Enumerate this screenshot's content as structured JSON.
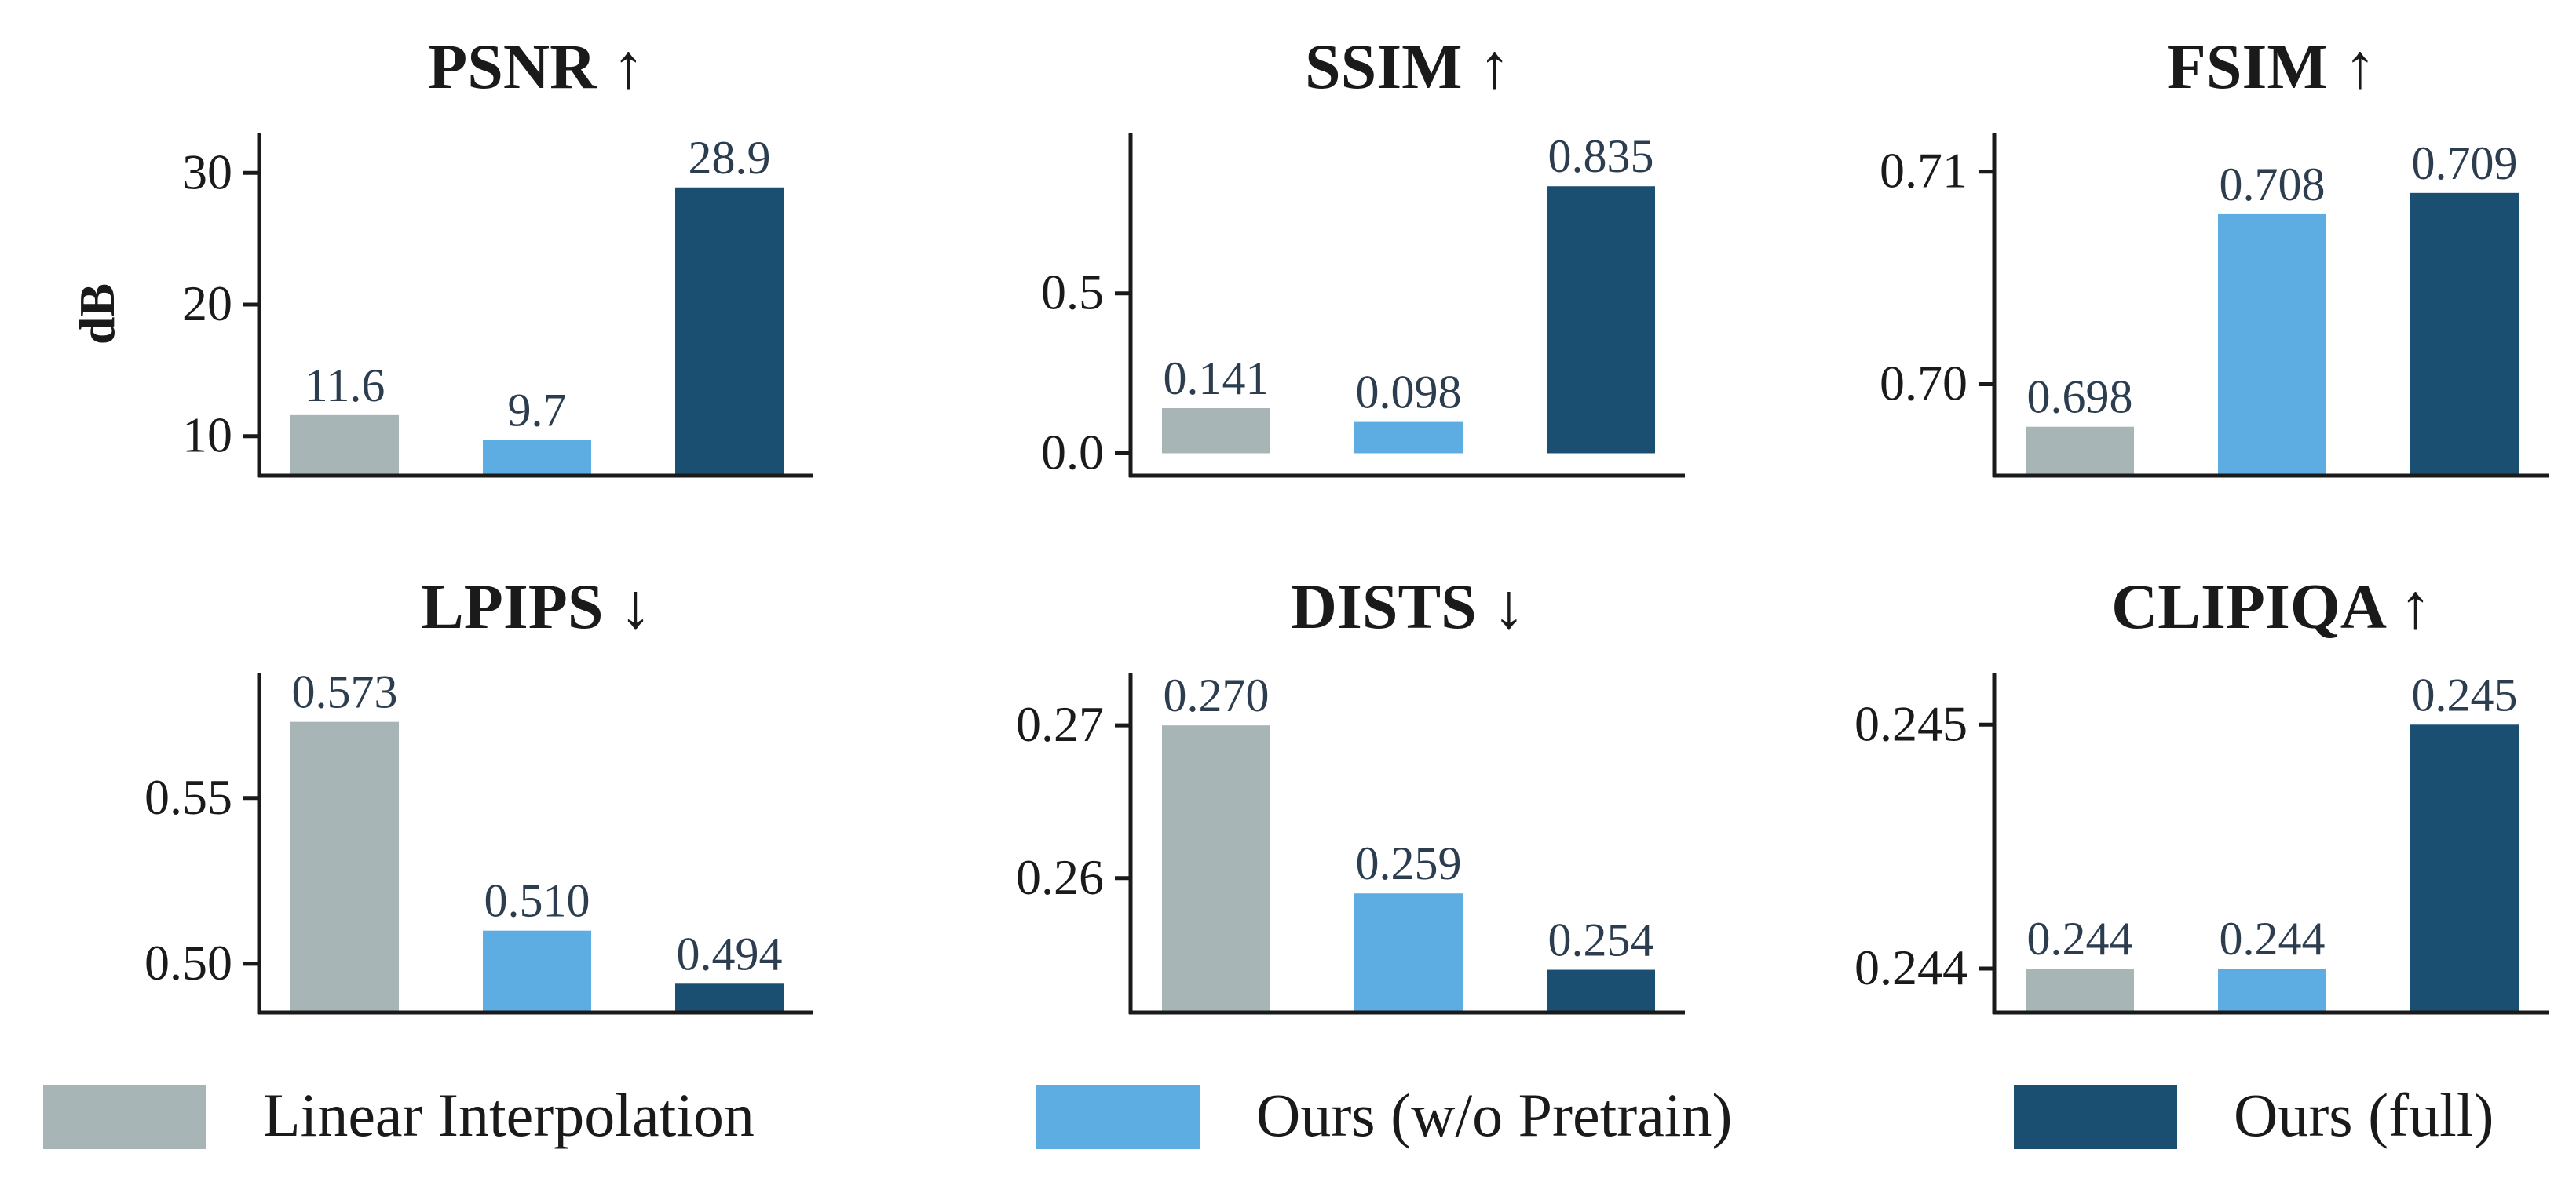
{
  "colors": {
    "linear_interpolation": "#a8b5b6",
    "ours_wo_pretrain": "#5dade2",
    "ours_full": "#1b4f72",
    "axis": "#1a1a1a",
    "value_label": "#2b3d4f"
  },
  "legend": {
    "items": [
      {
        "label": "Linear Interpolation",
        "color": "#a8b5b6"
      },
      {
        "label": "Ours (w/o Pretrain)",
        "color": "#5dade2"
      },
      {
        "label": "Ours (full)",
        "color": "#1b4f72"
      }
    ]
  },
  "chart_data": [
    {
      "type": "bar",
      "title": "PSNR ↑",
      "ylabel": "dB",
      "categories": [
        "Linear Interpolation",
        "Ours (w/o Pretrain)",
        "Ours (full)"
      ],
      "values": [
        11.6,
        9.7,
        28.9
      ],
      "value_labels": [
        "11.6",
        "9.7",
        "28.9"
      ],
      "ylim": [
        7,
        33
      ],
      "yticks": [
        10,
        20,
        30
      ],
      "ytick_labels": [
        "10",
        "20",
        "30"
      ]
    },
    {
      "type": "bar",
      "title": "SSIM ↑",
      "ylabel": "",
      "categories": [
        "Linear Interpolation",
        "Ours (w/o Pretrain)",
        "Ours (full)"
      ],
      "values": [
        0.141,
        0.098,
        0.835
      ],
      "value_labels": [
        "0.141",
        "0.098",
        "0.835"
      ],
      "ylim": [
        -0.07,
        1.0
      ],
      "yticks": [
        0.0,
        0.5
      ],
      "ytick_labels": [
        "0.0",
        "0.5"
      ]
    },
    {
      "type": "bar",
      "title": "FSIM ↑",
      "ylabel": "",
      "categories": [
        "Linear Interpolation",
        "Ours (w/o Pretrain)",
        "Ours (full)"
      ],
      "values": [
        0.698,
        0.708,
        0.709
      ],
      "value_labels": [
        "0.698",
        "0.708",
        "0.709"
      ],
      "ylim": [
        0.6957,
        0.7118
      ],
      "yticks": [
        0.7,
        0.71
      ],
      "ytick_labels": [
        "0.70",
        "0.71"
      ]
    },
    {
      "type": "bar",
      "title": "LPIPS ↓",
      "ylabel": "",
      "categories": [
        "Linear Interpolation",
        "Ours (w/o Pretrain)",
        "Ours (full)"
      ],
      "values": [
        0.573,
        0.51,
        0.494
      ],
      "value_labels": [
        "0.573",
        "0.510",
        "0.494"
      ],
      "ylim": [
        0.4853,
        0.5876
      ],
      "yticks": [
        0.5,
        0.55
      ],
      "ytick_labels": [
        "0.50",
        "0.55"
      ]
    },
    {
      "type": "bar",
      "title": "DISTS ↓",
      "ylabel": "",
      "categories": [
        "Linear Interpolation",
        "Ours (w/o Pretrain)",
        "Ours (full)"
      ],
      "values": [
        0.27,
        0.259,
        0.254
      ],
      "value_labels": [
        "0.270",
        "0.259",
        "0.254"
      ],
      "ylim": [
        0.2512,
        0.2734
      ],
      "yticks": [
        0.26,
        0.27
      ],
      "ytick_labels": [
        "0.26",
        "0.27"
      ]
    },
    {
      "type": "bar",
      "title": "CLIPIQA ↑",
      "ylabel": "",
      "categories": [
        "Linear Interpolation",
        "Ours (w/o Pretrain)",
        "Ours (full)"
      ],
      "values": [
        0.244,
        0.244,
        0.245
      ],
      "value_labels": [
        "0.244",
        "0.244",
        "0.245"
      ],
      "ylim": [
        0.24382,
        0.24521
      ],
      "yticks": [
        0.244,
        0.245
      ],
      "ytick_labels": [
        "0.244",
        "0.245"
      ]
    }
  ]
}
